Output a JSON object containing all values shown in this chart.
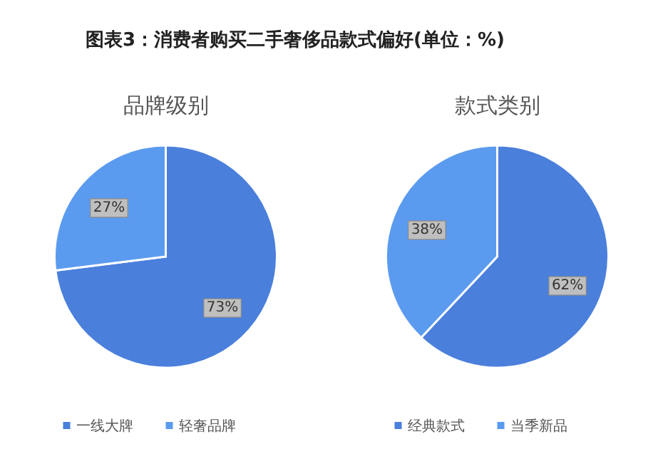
{
  "chart_data": [
    {
      "type": "pie",
      "title": "图表3：消费者购买二手奢侈品款式偏好(单位：%)",
      "subtitle": "品牌级别",
      "categories": [
        "一线大牌",
        "轻奢品牌"
      ],
      "values": [
        73,
        27
      ],
      "colors": [
        "#4a7fdc",
        "#5b9bef"
      ],
      "value_labels": [
        "73%",
        "27%"
      ],
      "legend": "bottom"
    },
    {
      "type": "pie",
      "subtitle": "款式类别",
      "categories": [
        "经典款式",
        "当季新品"
      ],
      "values": [
        62,
        38
      ],
      "colors": [
        "#4a7fdc",
        "#5b9bef"
      ],
      "value_labels": [
        "62%",
        "38%"
      ],
      "legend": "bottom"
    }
  ]
}
